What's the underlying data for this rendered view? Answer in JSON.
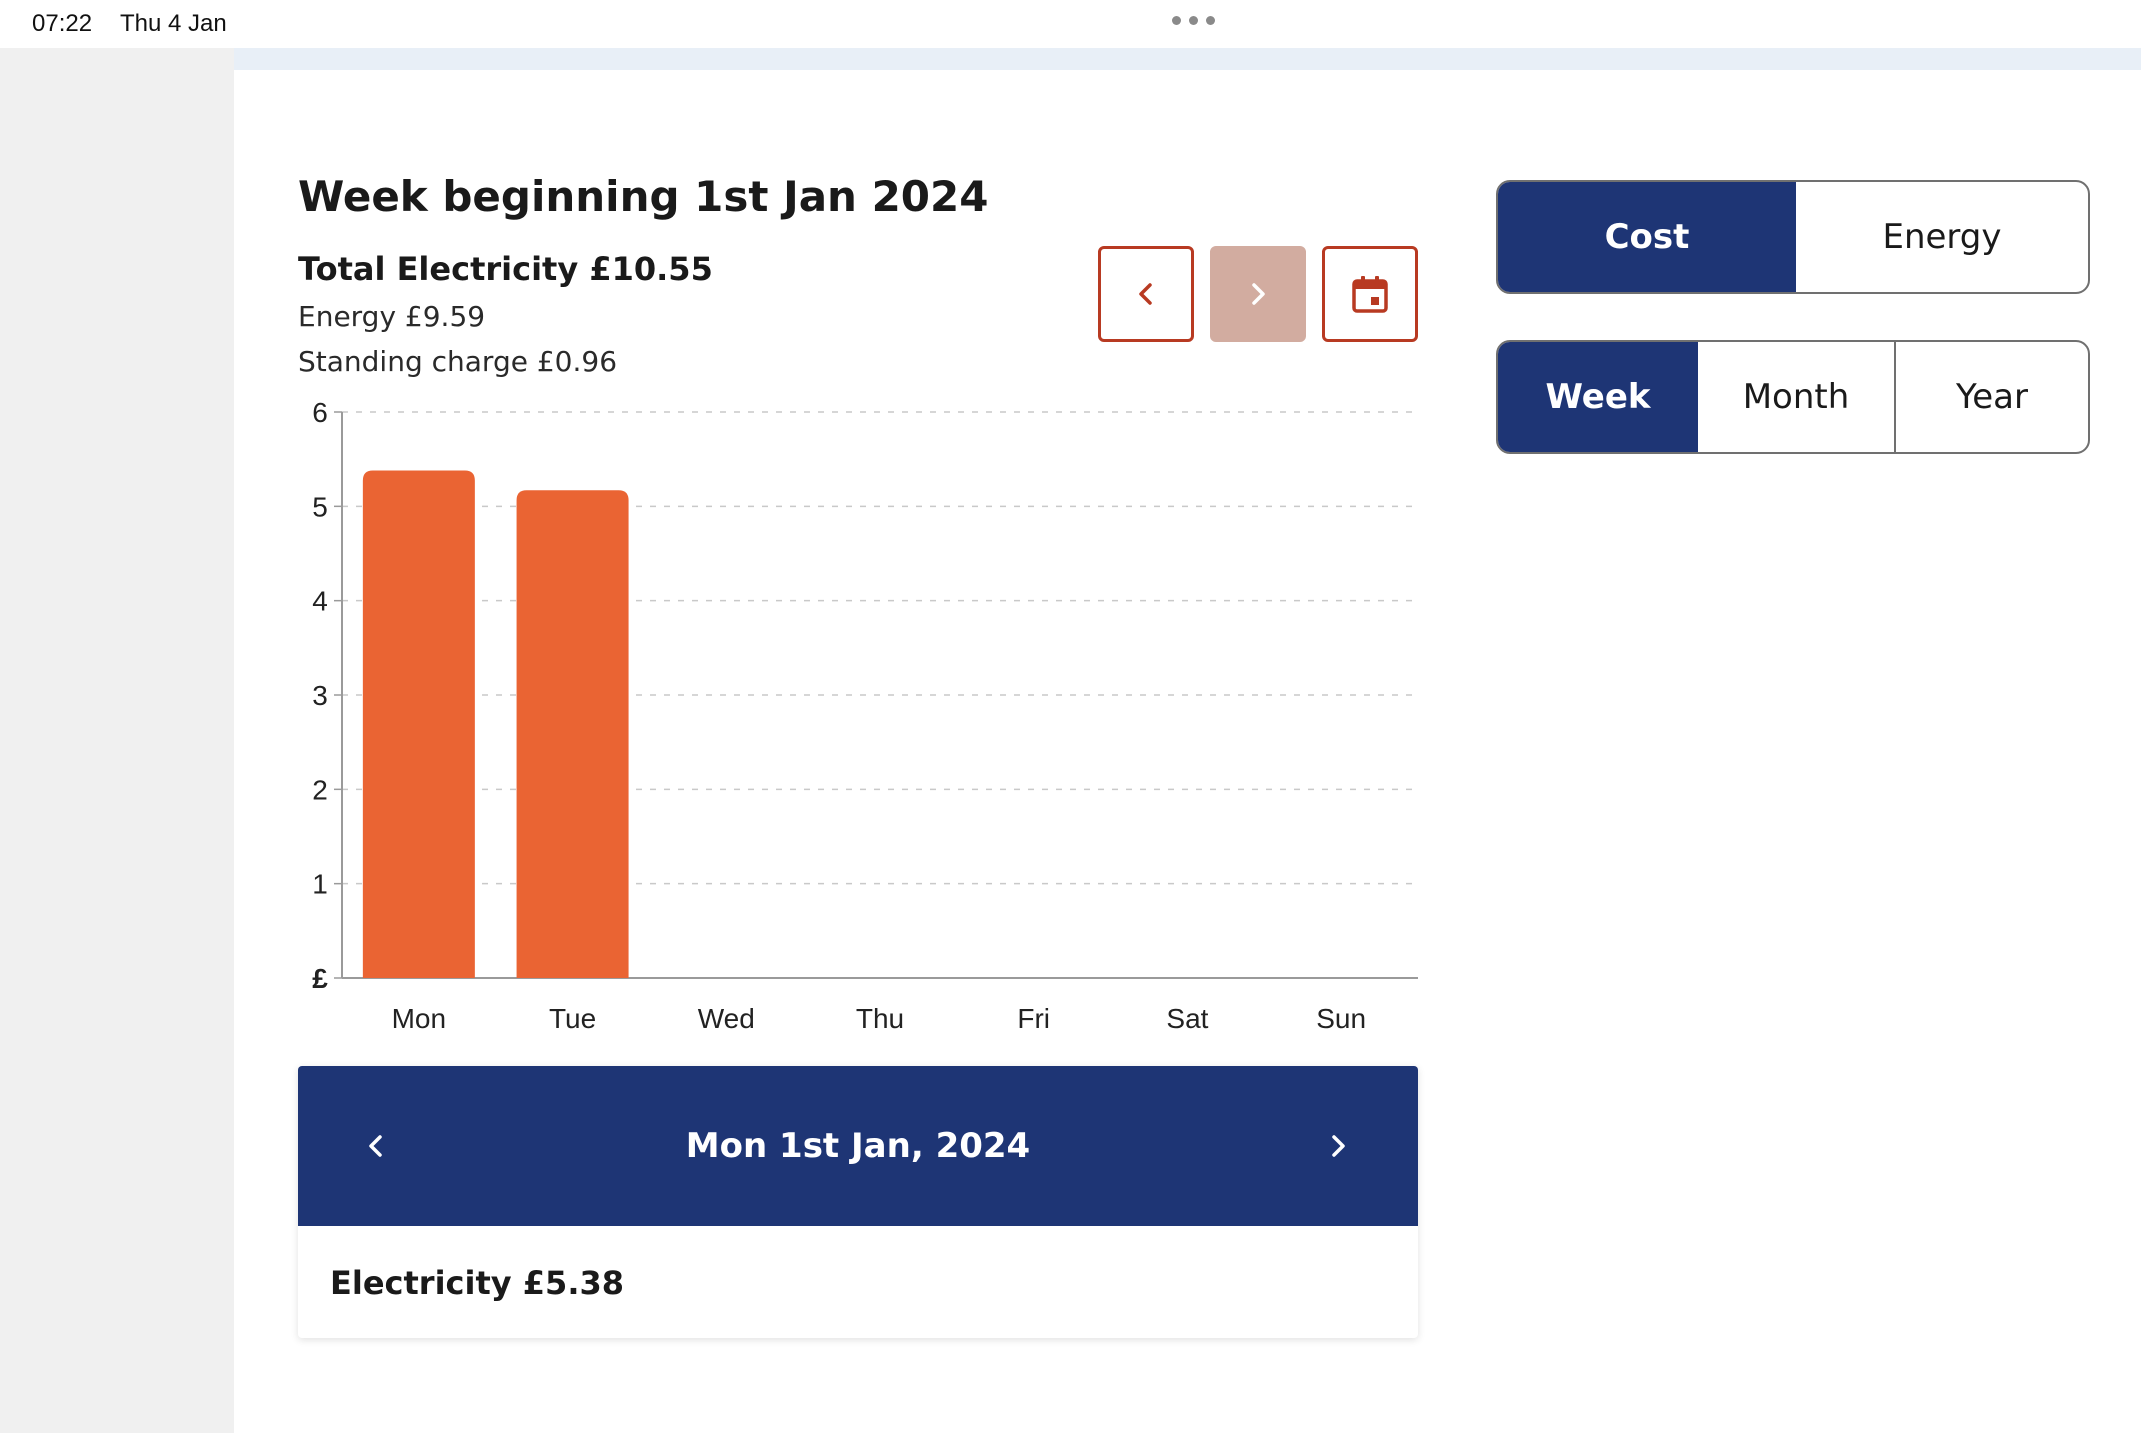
{
  "status_bar": {
    "time": "07:22",
    "date": "Thu 4 Jan"
  },
  "summary": {
    "week_title": "Week beginning 1st Jan 2024",
    "total": "Total Electricity £10.55",
    "energy": "Energy £9.59",
    "standing_charge": "Standing charge £0.96"
  },
  "nav": {
    "prev_icon": "chevron-left-icon",
    "next_icon": "chevron-right-icon",
    "calendar_icon": "calendar-icon",
    "next_disabled": true
  },
  "colors": {
    "accent_navy": "#1e3575",
    "bar_orange": "#ea6433",
    "nav_border": "#b83a22",
    "disabled_fill": "#d2aca0"
  },
  "chart_data": {
    "type": "bar",
    "categories": [
      "Mon",
      "Tue",
      "Wed",
      "Thu",
      "Fri",
      "Sat",
      "Sun"
    ],
    "values": [
      5.38,
      5.17,
      null,
      null,
      null,
      null,
      null
    ],
    "ylim": [
      0,
      6
    ],
    "yticks": [
      "£",
      "1",
      "2",
      "3",
      "4",
      "5",
      "6"
    ],
    "grid": true,
    "title": "",
    "xlabel": "",
    "ylabel": ""
  },
  "day_detail": {
    "title": "Mon 1st Jan, 2024",
    "electricity": "Electricity £5.38"
  },
  "metric_toggle": {
    "options": [
      "Cost",
      "Energy"
    ],
    "selected": "Cost"
  },
  "period_toggle": {
    "options": [
      "Week",
      "Month",
      "Year"
    ],
    "selected": "Week"
  }
}
